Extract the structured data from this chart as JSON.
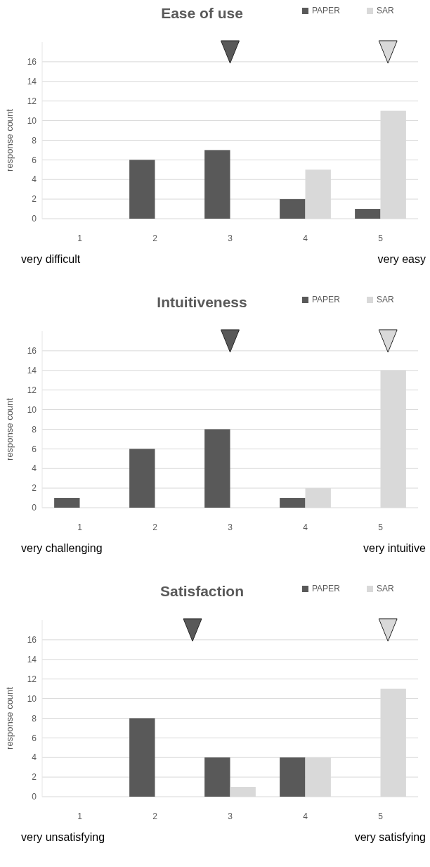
{
  "chart_data": [
    {
      "type": "bar",
      "title": "Ease of use",
      "ylabel": "response count",
      "x": [
        1,
        2,
        3,
        4,
        5
      ],
      "xlim": [
        0.5,
        5.5
      ],
      "xticks": [
        1,
        2,
        3,
        4,
        5
      ],
      "ylim": [
        0,
        18
      ],
      "yticks": [
        0,
        2,
        4,
        6,
        8,
        10,
        12,
        14,
        16
      ],
      "grid": "y",
      "legend": "top right",
      "series": [
        {
          "name": "PAPER",
          "color": "#595959",
          "values": [
            0,
            6,
            7,
            2,
            1
          ]
        },
        {
          "name": "SAR",
          "color": "#d9d9d9",
          "values": [
            0,
            0,
            0,
            5,
            11
          ]
        },
        {
          "type": "scatter",
          "marker": "triangle",
          "color": "#595959",
          "x": [
            3.0
          ],
          "values": [
            17
          ]
        },
        {
          "type": "scatter",
          "marker": "triangle",
          "color": "#d9d9d9",
          "x": [
            5.1
          ],
          "values": [
            17
          ]
        }
      ],
      "annotations": [
        "very difficult",
        "very easy"
      ]
    },
    {
      "type": "bar",
      "title": "Intuitiveness",
      "ylabel": "response count",
      "x": [
        1,
        2,
        3,
        4,
        5
      ],
      "xlim": [
        0.5,
        5.5
      ],
      "xticks": [
        1,
        2,
        3,
        4,
        5
      ],
      "ylim": [
        0,
        18
      ],
      "yticks": [
        0,
        2,
        4,
        6,
        8,
        10,
        12,
        14,
        16
      ],
      "grid": "y",
      "legend": "top right",
      "series": [
        {
          "name": "PAPER",
          "color": "#595959",
          "values": [
            1,
            6,
            8,
            1,
            0
          ]
        },
        {
          "name": "SAR",
          "color": "#d9d9d9",
          "values": [
            0,
            0,
            0,
            2,
            14
          ]
        },
        {
          "type": "scatter",
          "marker": "triangle",
          "color": "#595959",
          "x": [
            3.0
          ],
          "values": [
            17
          ]
        },
        {
          "type": "scatter",
          "marker": "triangle",
          "color": "#d9d9d9",
          "x": [
            5.1
          ],
          "values": [
            17
          ]
        }
      ],
      "annotations": [
        "very challenging",
        "very intuitive"
      ]
    },
    {
      "type": "bar",
      "title": "Satisfaction",
      "ylabel": "response count",
      "x": [
        1,
        2,
        3,
        4,
        5
      ],
      "xlim": [
        0.5,
        5.5
      ],
      "xticks": [
        1,
        2,
        3,
        4,
        5
      ],
      "ylim": [
        0,
        18
      ],
      "yticks": [
        0,
        2,
        4,
        6,
        8,
        10,
        12,
        14,
        16
      ],
      "grid": "y",
      "legend": "top right",
      "series": [
        {
          "name": "PAPER",
          "color": "#595959",
          "values": [
            0,
            8,
            4,
            4,
            0
          ]
        },
        {
          "name": "SAR",
          "color": "#d9d9d9",
          "values": [
            0,
            0,
            1,
            4,
            11
          ]
        },
        {
          "type": "scatter",
          "marker": "triangle",
          "color": "#595959",
          "x": [
            2.5
          ],
          "values": [
            17
          ]
        },
        {
          "type": "scatter",
          "marker": "triangle",
          "color": "#d9d9d9",
          "x": [
            5.1
          ],
          "values": [
            17
          ]
        }
      ],
      "annotations": [
        "very unsatisfying",
        "very satisfying"
      ]
    }
  ]
}
